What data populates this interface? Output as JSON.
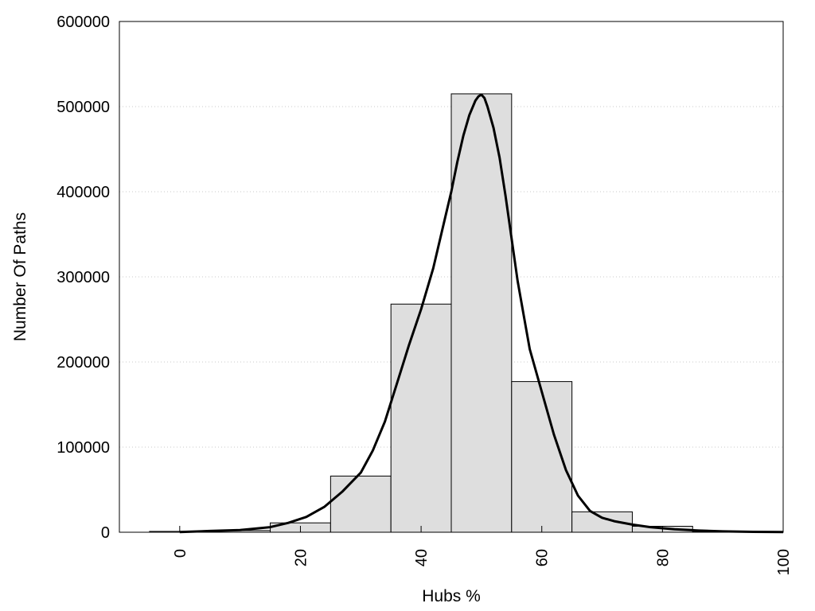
{
  "chart_data": {
    "type": "bar",
    "title": "",
    "xlabel": "Hubs %",
    "ylabel": "Number Of Paths",
    "xlim": [
      -10,
      100
    ],
    "ylim": [
      0,
      600000
    ],
    "x_ticks": [
      0,
      20,
      40,
      60,
      80,
      100
    ],
    "x_tick_labels": [
      "0",
      "20",
      "40",
      "60",
      "80",
      "100"
    ],
    "y_ticks": [
      0,
      100000,
      200000,
      300000,
      400000,
      500000,
      600000
    ],
    "y_tick_labels": [
      "0",
      "100000",
      "200000",
      "300000",
      "400000",
      "500000",
      "600000"
    ],
    "grid": "horizontal dotted",
    "bin_width": 10,
    "bars": [
      {
        "x": 0,
        "value": 1000
      },
      {
        "x": 10,
        "value": 2000
      },
      {
        "x": 20,
        "value": 11000
      },
      {
        "x": 30,
        "value": 66000
      },
      {
        "x": 40,
        "value": 268000
      },
      {
        "x": 50,
        "value": 515000
      },
      {
        "x": 60,
        "value": 177000
      },
      {
        "x": 70,
        "value": 24000
      },
      {
        "x": 80,
        "value": 7000
      },
      {
        "x": 90,
        "value": 1000
      }
    ],
    "curve": {
      "x": [
        0,
        5,
        10,
        15,
        18,
        21,
        24,
        27,
        30,
        32,
        34,
        36,
        38,
        40,
        42,
        44,
        45,
        46,
        47,
        48,
        49,
        49.5,
        50,
        50.5,
        51,
        52,
        53,
        54,
        55,
        56,
        57,
        58,
        60,
        62,
        64,
        66,
        68,
        70,
        72,
        75,
        78,
        82,
        86,
        90,
        95,
        100
      ],
      "y": [
        300,
        1500,
        2500,
        6000,
        11000,
        18000,
        30000,
        48000,
        70000,
        96000,
        130000,
        175000,
        220000,
        262000,
        310000,
        370000,
        400000,
        435000,
        466000,
        490000,
        507000,
        512000,
        514000,
        510000,
        500000,
        475000,
        440000,
        395000,
        345000,
        295000,
        255000,
        215000,
        165000,
        115000,
        73000,
        43000,
        25000,
        17000,
        13000,
        9000,
        6000,
        3500,
        2000,
        1000,
        500,
        200
      ]
    }
  }
}
